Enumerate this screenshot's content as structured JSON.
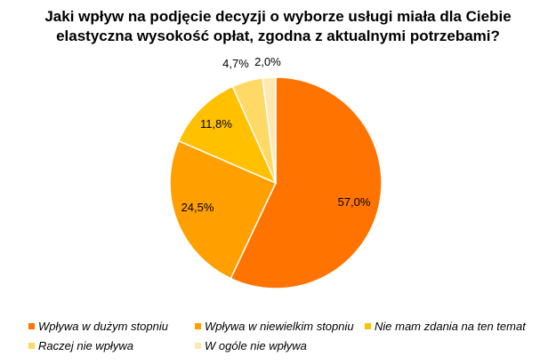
{
  "chart_data": {
    "type": "pie",
    "title_line1": "Jaki wpływ na podjęcie decyzji o wyborze usługi miała dla Ciebie",
    "title_line2": "elastyczna wysokość opłat, zgodna z aktualnymi potrzebami?",
    "slices": [
      {
        "label": "Wpływa w dużym stopniu",
        "value": 57.0,
        "display": "57,0%",
        "color": "#FF7300"
      },
      {
        "label": "Wpływa w niewielkim stopniu",
        "value": 24.5,
        "display": "24,5%",
        "color": "#FFA000"
      },
      {
        "label": "Nie mam zdania na ten temat",
        "value": 11.8,
        "display": "11,8%",
        "color": "#FFC000"
      },
      {
        "label": "Raczej nie wpływa",
        "value": 4.7,
        "display": "4,7%",
        "color": "#FFD966"
      },
      {
        "label": "W ogóle nie wpływa",
        "value": 2.0,
        "display": "2,0%",
        "color": "#FFE8B0"
      }
    ],
    "legend_position": "bottom",
    "start_angle": "top",
    "direction": "clockwise"
  }
}
